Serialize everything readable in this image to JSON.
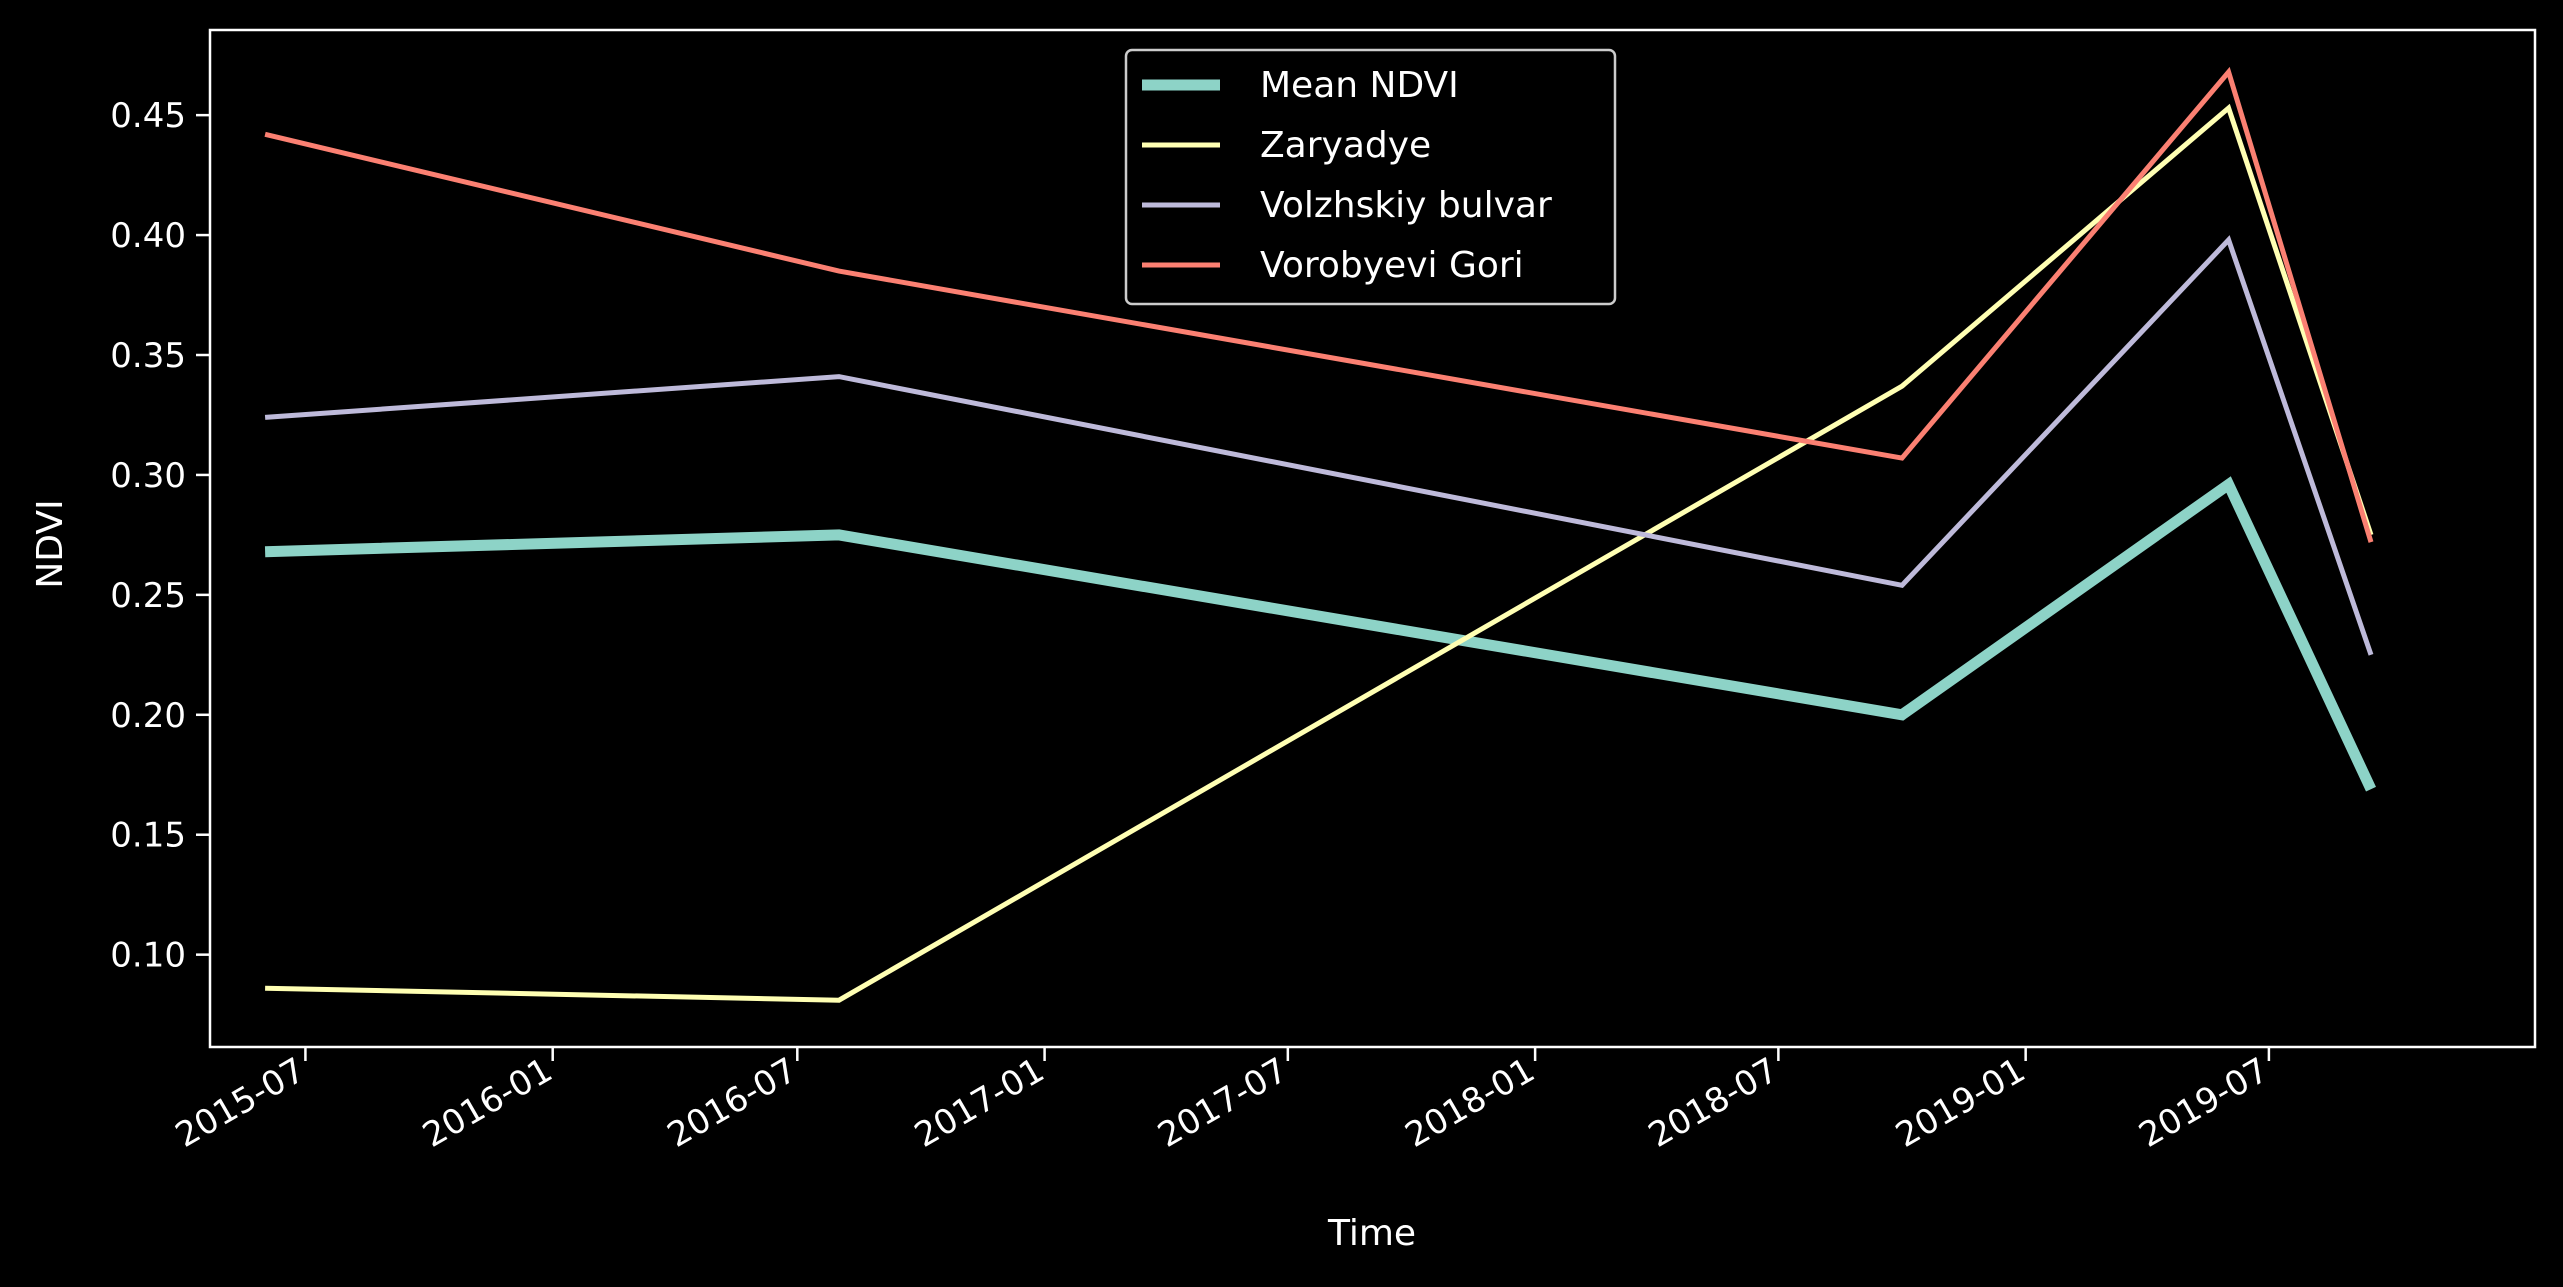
{
  "chart_data": {
    "type": "line",
    "title": "",
    "xlabel": "Time",
    "ylabel": "NDVI",
    "x": [
      "2015-06-01",
      "2016-08-01",
      "2018-10-01",
      "2019-06-01",
      "2019-09-15"
    ],
    "x_range": [
      "2015-04-21",
      "2020-01-15"
    ],
    "ylim": [
      0.0615,
      0.4855
    ],
    "x_ticks": [
      {
        "date": "2015-07-01",
        "label": "2015-07"
      },
      {
        "date": "2016-01-01",
        "label": "2016-01"
      },
      {
        "date": "2016-07-01",
        "label": "2016-07"
      },
      {
        "date": "2017-01-01",
        "label": "2017-01"
      },
      {
        "date": "2017-07-01",
        "label": "2017-07"
      },
      {
        "date": "2018-01-01",
        "label": "2018-01"
      },
      {
        "date": "2018-07-01",
        "label": "2018-07"
      },
      {
        "date": "2019-01-01",
        "label": "2019-01"
      },
      {
        "date": "2019-07-01",
        "label": "2019-07"
      }
    ],
    "y_ticks": [
      {
        "value": 0.1,
        "label": "0.10"
      },
      {
        "value": 0.15,
        "label": "0.15"
      },
      {
        "value": 0.2,
        "label": "0.20"
      },
      {
        "value": 0.25,
        "label": "0.25"
      },
      {
        "value": 0.3,
        "label": "0.30"
      },
      {
        "value": 0.35,
        "label": "0.35"
      },
      {
        "value": 0.4,
        "label": "0.40"
      },
      {
        "value": 0.45,
        "label": "0.45"
      }
    ],
    "series": [
      {
        "name": "Mean NDVI",
        "color": "#8dd3c7",
        "bold": true,
        "values": [
          0.268,
          0.275,
          0.2,
          0.296,
          0.169
        ]
      },
      {
        "name": "Zaryadye",
        "color": "#ffffb3",
        "values": [
          0.086,
          0.081,
          0.337,
          0.453,
          0.275
        ]
      },
      {
        "name": "Volzhskiy bulvar",
        "color": "#bebada",
        "values": [
          0.324,
          0.341,
          0.254,
          0.398,
          0.225
        ]
      },
      {
        "name": "Vorobyevi Gori",
        "color": "#fb8072",
        "values": [
          0.442,
          0.385,
          0.307,
          0.468,
          0.272
        ]
      }
    ],
    "legend_position": "top-center",
    "grid": false,
    "background": "#000000",
    "foreground": "#ffffff"
  }
}
